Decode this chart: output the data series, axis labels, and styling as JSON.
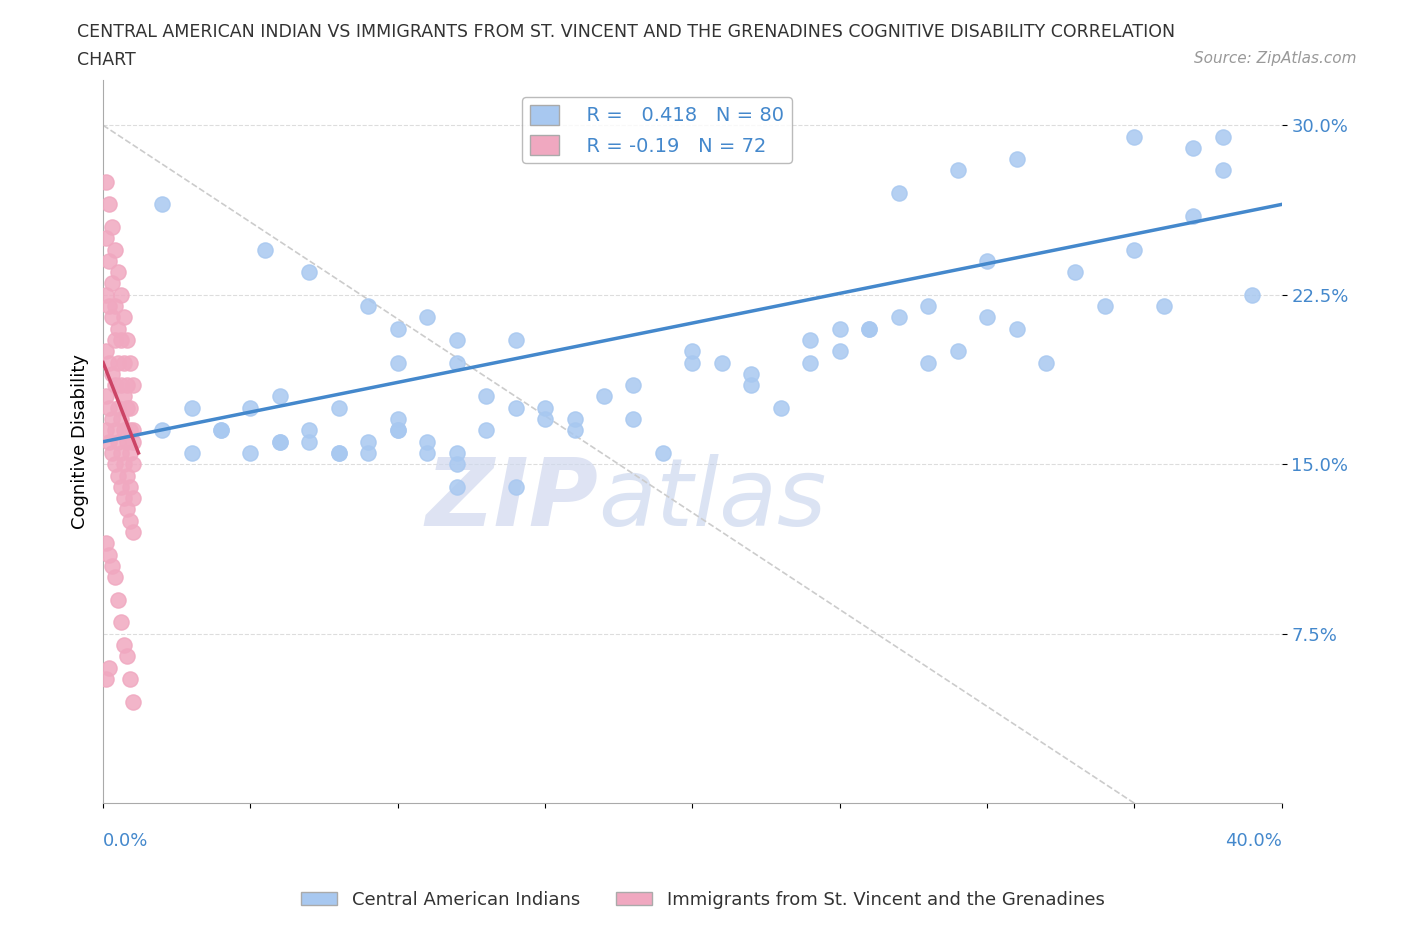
{
  "title_line1": "CENTRAL AMERICAN INDIAN VS IMMIGRANTS FROM ST. VINCENT AND THE GRENADINES COGNITIVE DISABILITY CORRELATION",
  "title_line2": "CHART",
  "source": "Source: ZipAtlas.com",
  "ylabel": "Cognitive Disability",
  "r_blue": 0.418,
  "n_blue": 80,
  "r_pink": -0.19,
  "n_pink": 72,
  "yticks": [
    0.075,
    0.15,
    0.225,
    0.3
  ],
  "ytick_labels": [
    "7.5%",
    "15.0%",
    "22.5%",
    "30.0%"
  ],
  "xtick_labels": [
    "0.0%",
    "40.0%"
  ],
  "xlim": [
    0.0,
    0.4
  ],
  "ylim": [
    0.0,
    0.32
  ],
  "color_blue": "#a8c8f0",
  "color_pink": "#f0a8c0",
  "line_blue": "#4488cc",
  "line_pink": "#cc4466",
  "line_dashed": "#cccccc",
  "tick_color": "#4488cc",
  "watermark_zip": "ZIP",
  "watermark_atlas": "atlas",
  "legend_label_blue": "Central American Indians",
  "legend_label_pink": "Immigrants from St. Vincent and the Grenadines",
  "blue_scatter_x": [
    0.02,
    0.055,
    0.07,
    0.09,
    0.1,
    0.1,
    0.11,
    0.12,
    0.12,
    0.13,
    0.14,
    0.15,
    0.16,
    0.17,
    0.18,
    0.19,
    0.2,
    0.21,
    0.22,
    0.23,
    0.24,
    0.25,
    0.26,
    0.27,
    0.28,
    0.29,
    0.3,
    0.31,
    0.32,
    0.34,
    0.06,
    0.07,
    0.08,
    0.09,
    0.1,
    0.11,
    0.12,
    0.13,
    0.14,
    0.15,
    0.03,
    0.04,
    0.05,
    0.06,
    0.07,
    0.08,
    0.09,
    0.1,
    0.11,
    0.12,
    0.02,
    0.03,
    0.04,
    0.05,
    0.06,
    0.08,
    0.1,
    0.12,
    0.14,
    0.16,
    0.18,
    0.2,
    0.22,
    0.24,
    0.26,
    0.28,
    0.3,
    0.33,
    0.35,
    0.37,
    0.38,
    0.39,
    0.27,
    0.29,
    0.31,
    0.35,
    0.37,
    0.38,
    0.36,
    0.25
  ],
  "blue_scatter_y": [
    0.265,
    0.245,
    0.235,
    0.22,
    0.21,
    0.195,
    0.215,
    0.205,
    0.195,
    0.18,
    0.205,
    0.175,
    0.17,
    0.18,
    0.185,
    0.155,
    0.2,
    0.195,
    0.185,
    0.175,
    0.195,
    0.2,
    0.21,
    0.215,
    0.195,
    0.2,
    0.215,
    0.21,
    0.195,
    0.22,
    0.18,
    0.165,
    0.155,
    0.16,
    0.17,
    0.155,
    0.14,
    0.165,
    0.175,
    0.17,
    0.175,
    0.165,
    0.175,
    0.16,
    0.16,
    0.175,
    0.155,
    0.165,
    0.16,
    0.155,
    0.165,
    0.155,
    0.165,
    0.155,
    0.16,
    0.155,
    0.165,
    0.15,
    0.14,
    0.165,
    0.17,
    0.195,
    0.19,
    0.205,
    0.21,
    0.22,
    0.24,
    0.235,
    0.245,
    0.26,
    0.28,
    0.225,
    0.27,
    0.28,
    0.285,
    0.295,
    0.29,
    0.295,
    0.22,
    0.21
  ],
  "pink_scatter_x": [
    0.001,
    0.002,
    0.003,
    0.004,
    0.005,
    0.006,
    0.007,
    0.008,
    0.009,
    0.01,
    0.001,
    0.002,
    0.003,
    0.004,
    0.005,
    0.006,
    0.007,
    0.008,
    0.009,
    0.01,
    0.001,
    0.002,
    0.003,
    0.004,
    0.005,
    0.006,
    0.007,
    0.008,
    0.009,
    0.01,
    0.001,
    0.002,
    0.003,
    0.004,
    0.005,
    0.006,
    0.007,
    0.008,
    0.009,
    0.01,
    0.001,
    0.002,
    0.003,
    0.004,
    0.005,
    0.006,
    0.007,
    0.008,
    0.009,
    0.01,
    0.001,
    0.002,
    0.003,
    0.004,
    0.005,
    0.006,
    0.007,
    0.008,
    0.009,
    0.01,
    0.001,
    0.002,
    0.003,
    0.004,
    0.005,
    0.006,
    0.007,
    0.008,
    0.009,
    0.01,
    0.001,
    0.002
  ],
  "pink_scatter_y": [
    0.275,
    0.265,
    0.255,
    0.245,
    0.235,
    0.225,
    0.215,
    0.205,
    0.195,
    0.185,
    0.25,
    0.24,
    0.23,
    0.22,
    0.21,
    0.205,
    0.195,
    0.185,
    0.175,
    0.165,
    0.225,
    0.22,
    0.215,
    0.205,
    0.195,
    0.185,
    0.18,
    0.175,
    0.165,
    0.16,
    0.2,
    0.195,
    0.19,
    0.185,
    0.175,
    0.17,
    0.165,
    0.16,
    0.155,
    0.15,
    0.18,
    0.175,
    0.17,
    0.165,
    0.16,
    0.155,
    0.15,
    0.145,
    0.14,
    0.135,
    0.165,
    0.16,
    0.155,
    0.15,
    0.145,
    0.14,
    0.135,
    0.13,
    0.125,
    0.12,
    0.115,
    0.11,
    0.105,
    0.1,
    0.09,
    0.08,
    0.07,
    0.065,
    0.055,
    0.045,
    0.055,
    0.06
  ]
}
